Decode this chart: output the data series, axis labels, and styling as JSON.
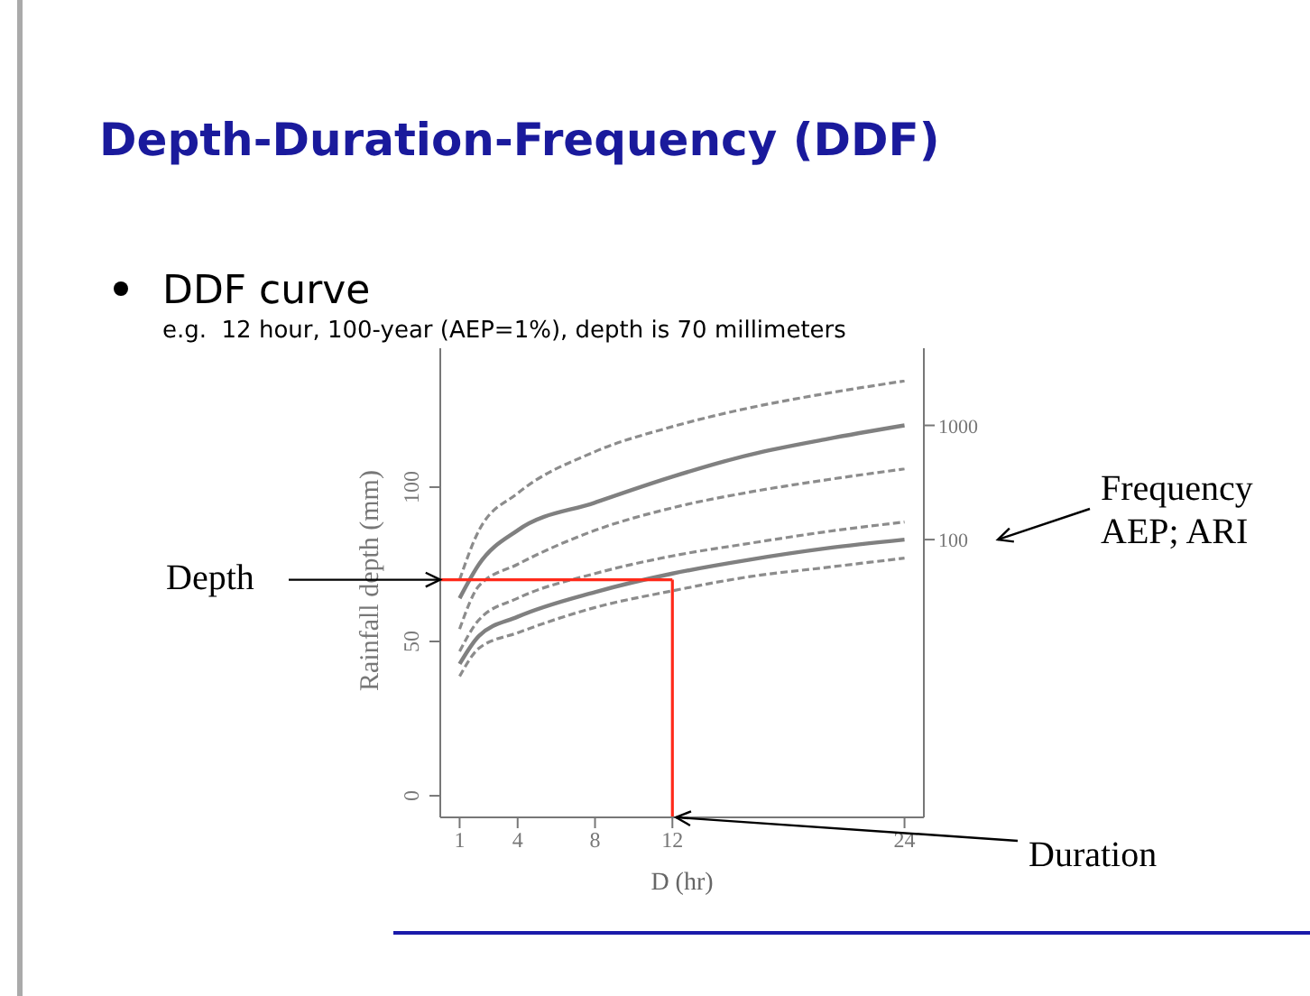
{
  "chart_data": {
    "type": "line",
    "title": "Depth-Duration-Frequency (DDF)",
    "subtitle": "DDF curve",
    "xlabel": "D (hr)",
    "ylabel": "Rainfall depth (mm)",
    "annotations": [
      "e.g.  12 hour, 100-year (AEP=1%), depth is 70 millimeters",
      {
        "text": "Depth",
        "x": 0,
        "y": 70
      },
      "Frequency\nAEP; ARI",
      {
        "text": "Duration",
        "x": 12,
        "y": -7
      }
    ],
    "x": [
      1,
      2,
      4,
      8,
      12,
      16,
      20,
      24
    ],
    "series": [
      {
        "color": "#8c8c8c",
        "line_style": "dashed",
        "values": [
          70,
          86,
          98,
          111.5,
          119.6,
          125.7,
          130.4,
          134.4
        ]
      },
      {
        "name": "1000",
        "color": "#808080",
        "line_style": "solid",
        "values": [
          64,
          75,
          86,
          95,
          103.4,
          110.5,
          115.6,
          120
        ]
      },
      {
        "color": "#8c8c8c",
        "line_style": "dashed",
        "values": [
          54,
          68,
          75,
          86,
          93.3,
          98.4,
          102.4,
          105.9
        ]
      },
      {
        "color": "#8c8c8c",
        "line_style": "dashed",
        "values": [
          46.8,
          57,
          64,
          72,
          77.7,
          81.8,
          85.6,
          88.7
        ]
      },
      {
        "name": "100",
        "color": "#808080",
        "line_style": "solid",
        "values": [
          42.7,
          51.8,
          58,
          66,
          72,
          76.5,
          80.2,
          83
        ]
      },
      {
        "color": "#8c8c8c",
        "line_style": "dashed",
        "values": [
          38.7,
          47.8,
          52.8,
          61,
          66.4,
          71,
          74,
          77
        ]
      }
    ],
    "ref_lines": [
      {
        "axis": "y",
        "value": 70,
        "color": "#ff2a1a"
      },
      {
        "axis": "x",
        "value": 12,
        "color": "#ff2a1a"
      }
    ],
    "xlim": [
      0,
      25
    ],
    "ylim": [
      -7,
      145
    ],
    "xticks": [
      1,
      4,
      8,
      12,
      24
    ],
    "yticks": [
      0,
      50,
      100
    ],
    "legend": "right",
    "grid": false,
    "marker": "none"
  }
}
